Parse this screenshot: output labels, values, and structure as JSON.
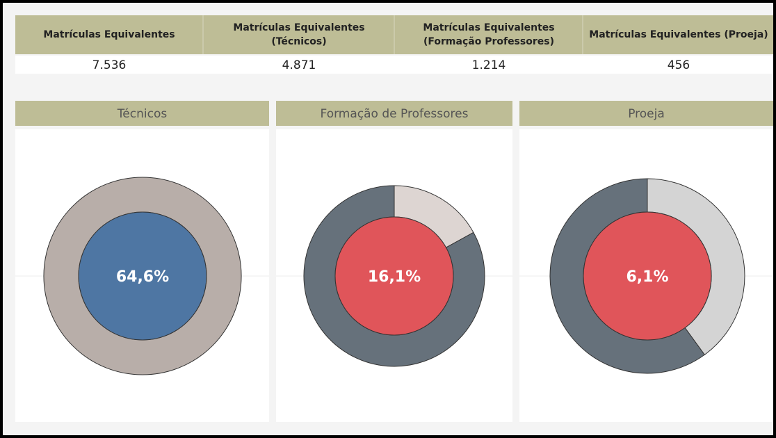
{
  "table": {
    "headers": [
      [
        "Matrículas Equivalentes"
      ],
      [
        "Matrículas Equivalentes",
        "(Técnicos)"
      ],
      [
        "Matrículas Equivalentes",
        "(Formação Professores)"
      ],
      [
        "Matrículas Equivalentes (Proeja)"
      ]
    ],
    "values": [
      "7.536",
      "4.871",
      "1.214",
      "456"
    ]
  },
  "chart_data": [
    {
      "type": "donut",
      "title": "Técnicos",
      "center_label": "64,6%",
      "values": [
        100
      ],
      "colors": [
        "#b8aea9"
      ],
      "center_color": "#4e76a3"
    },
    {
      "type": "donut",
      "title": "Formação de Professores",
      "center_label": "16,1%",
      "values": [
        17,
        83
      ],
      "colors": [
        "#ddd5d2",
        "#66717b"
      ],
      "center_color": "#e0555a"
    },
    {
      "type": "donut",
      "title": "Proeja",
      "center_label": "6,1%",
      "values": [
        40,
        60
      ],
      "colors": [
        "#d4d4d4",
        "#66717b"
      ],
      "center_color": "#e0555a"
    }
  ]
}
